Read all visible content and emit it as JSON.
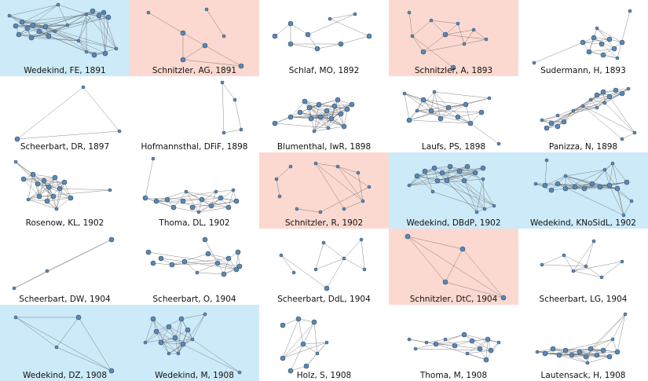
{
  "colors": {
    "blue": "#cdeaf8",
    "red": "#fbd9d0",
    "white": "#ffffff",
    "node": "#5b87b5",
    "node_stroke": "#2f4f6f",
    "edge": "#555555"
  },
  "cells": [
    {
      "label": "Wedekind, FE, 1891",
      "bg": "blue"
    },
    {
      "label": "Schnitzler, AG, 1891",
      "bg": "red"
    },
    {
      "label": "Schlaf, MO, 1892",
      "bg": "white"
    },
    {
      "label": "Schnitzler, A, 1893",
      "bg": "red"
    },
    {
      "label": "Sudermann, H, 1893",
      "bg": "white"
    },
    {
      "label": "Scheerbart, DR, 1897",
      "bg": "white"
    },
    {
      "label": "Hofmannsthal, DFiF, 1898",
      "bg": "white"
    },
    {
      "label": "Blumenthal, IwR, 1898",
      "bg": "white"
    },
    {
      "label": "Laufs, PS, 1898",
      "bg": "white"
    },
    {
      "label": "Panizza, N, 1898",
      "bg": "white"
    },
    {
      "label": "Rosenow, KL, 1902",
      "bg": "white"
    },
    {
      "label": "Thoma, DL, 1902",
      "bg": "white"
    },
    {
      "label": "Schnitzler, R, 1902",
      "bg": "red"
    },
    {
      "label": "Wedekind, DBdP, 1902",
      "bg": "blue"
    },
    {
      "label": "Wedekind, KNoSidL, 1902",
      "bg": "blue"
    },
    {
      "label": "Scheerbart, DW, 1904",
      "bg": "white"
    },
    {
      "label": "Scheerbart, O, 1904",
      "bg": "white"
    },
    {
      "label": "Scheerbart, DdL, 1904",
      "bg": "white"
    },
    {
      "label": "Schnitzler, DtC, 1904",
      "bg": "red"
    },
    {
      "label": "Scheerbart, LG, 1904",
      "bg": "white"
    },
    {
      "label": "Wedekind, DZ, 1908",
      "bg": "blue"
    },
    {
      "label": "Wedekind, M, 1908",
      "bg": "blue"
    },
    {
      "label": "Holz, S, 1908",
      "bg": "white"
    },
    {
      "label": "Thoma, M, 1908",
      "bg": "white"
    },
    {
      "label": "Lautensack, H, 1908",
      "bg": "white"
    }
  ]
}
